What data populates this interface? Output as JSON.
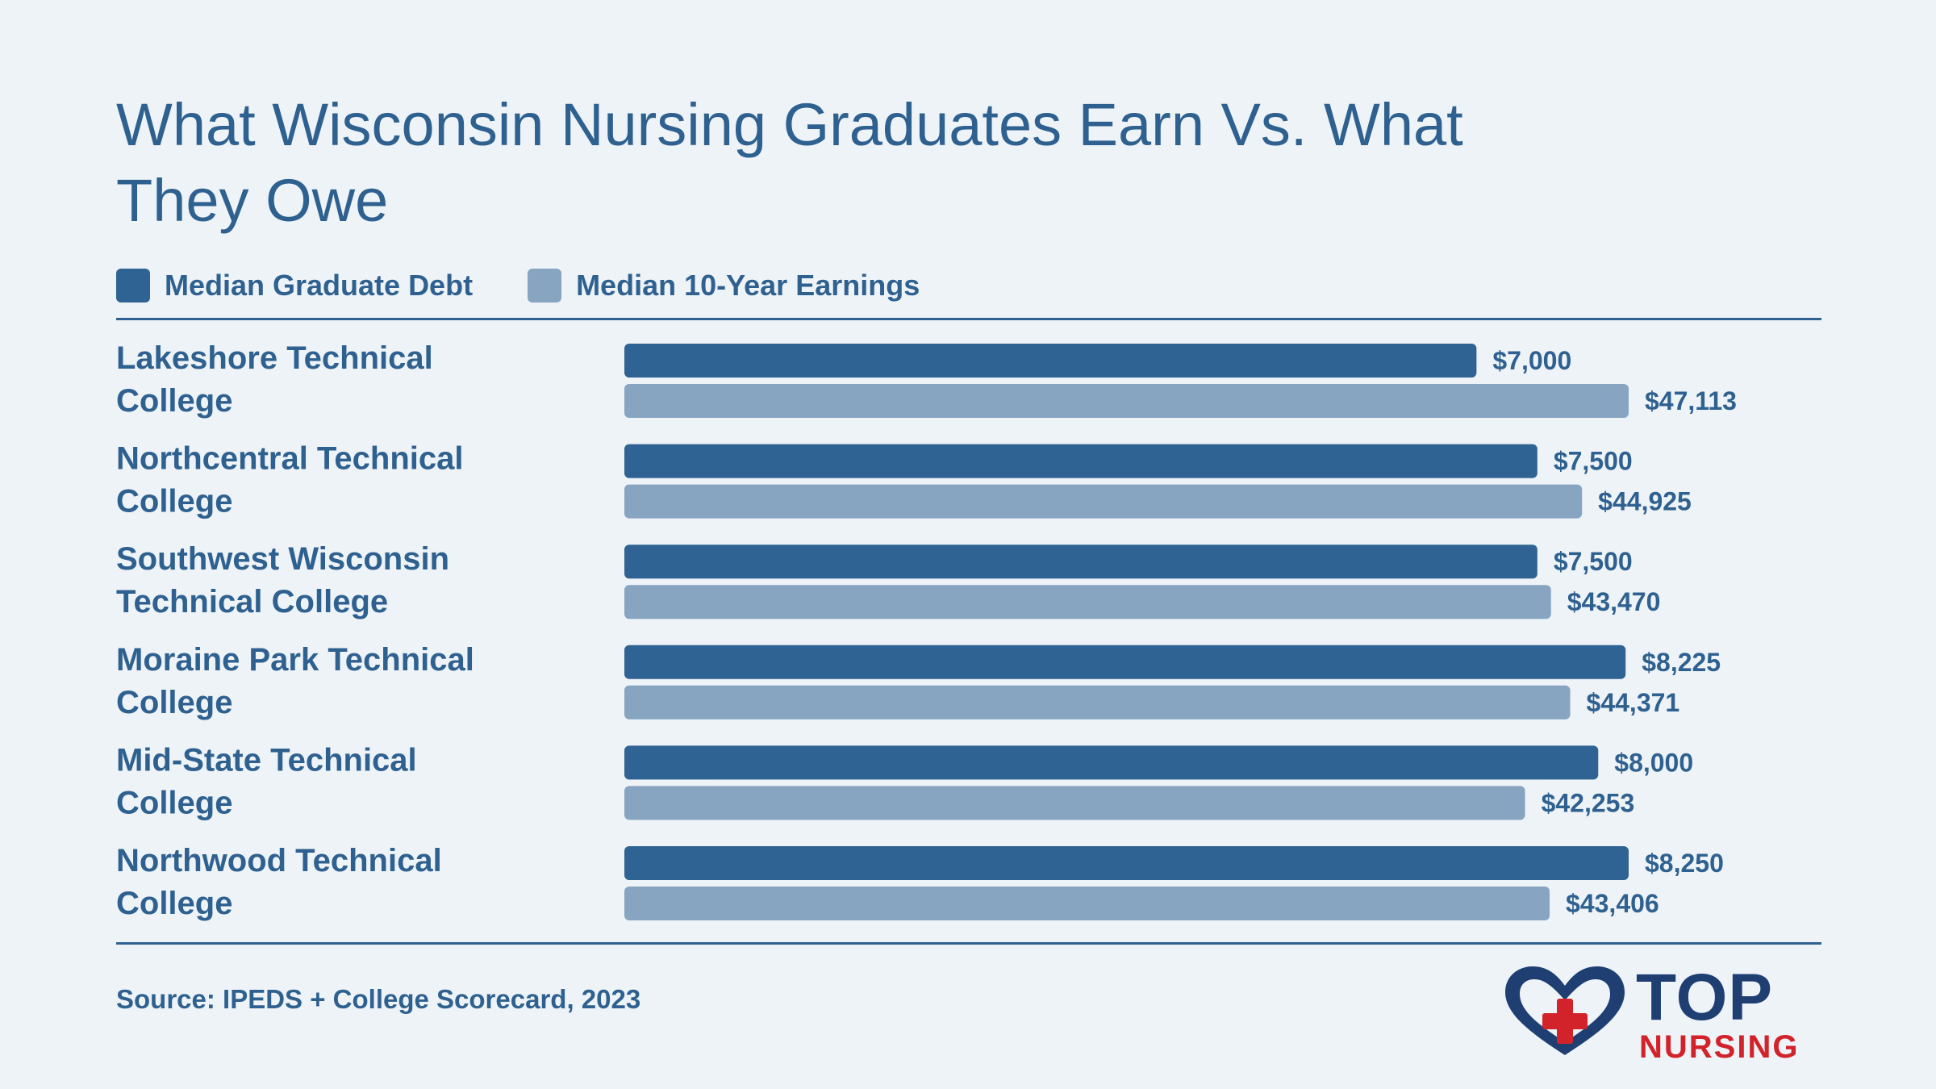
{
  "title": "What Wisconsin Nursing Graduates Earn Vs. What They Owe",
  "legend": [
    {
      "label": "Median Graduate Debt",
      "color": "#2f6393"
    },
    {
      "label": "Median 10-Year Earnings",
      "color": "#87a5c1"
    }
  ],
  "source": "Source: IPEDS + College Scorecard, 2023",
  "logo": {
    "top": "TOP",
    "bottom": "NURSING"
  },
  "chart_data": {
    "type": "bar",
    "orientation": "horizontal",
    "title": "What Wisconsin Nursing Graduates Earn Vs. What They Owe",
    "categories": [
      [
        "Lakeshore Technical",
        "College"
      ],
      [
        "Northcentral Technical",
        "College"
      ],
      [
        "Southwest Wisconsin",
        "Technical College"
      ],
      [
        "Moraine Park Technical",
        "College"
      ],
      [
        "Mid-State Technical",
        "College"
      ],
      [
        "Northwood Technical",
        "College"
      ]
    ],
    "series": [
      {
        "name": "Median Graduate Debt",
        "color": "#2f6393",
        "values": [
          7000,
          7500,
          7500,
          8225,
          8000,
          8250
        ],
        "labels": [
          "$7,000",
          "$7,500",
          "$7,500",
          "$8,225",
          "$8,000",
          "$8,250"
        ]
      },
      {
        "name": "Median 10-Year Earnings",
        "color": "#87a5c1",
        "values": [
          47113,
          44925,
          43470,
          44371,
          42253,
          43406
        ],
        "labels": [
          "$47,113",
          "$44,925",
          "$43,470",
          "$44,371",
          "$42,253",
          "$43,406"
        ]
      }
    ],
    "legend_position": "top-left",
    "grid": false
  }
}
